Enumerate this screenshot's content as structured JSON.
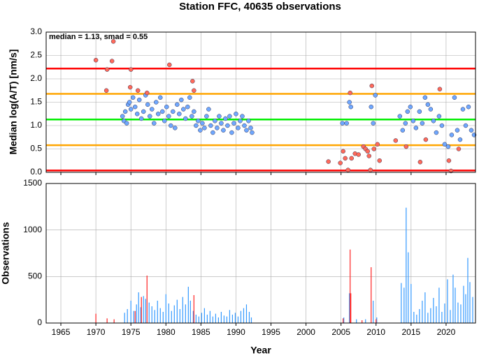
{
  "chart_data": [
    {
      "type": "scatter",
      "title": "Station FFC, 40635 observations",
      "y_label": "Median log(A/T) [nm/s]",
      "annotation": "median = 1.13, smad = 0.55",
      "xlim": [
        1962.9,
        2024.2
      ],
      "ylim": [
        0,
        3
      ],
      "yticks": [
        {
          "value": 0,
          "label": "0.0"
        },
        {
          "value": 0.5,
          "label": "0.5"
        },
        {
          "value": 1,
          "label": "1.0"
        },
        {
          "value": 1.5,
          "label": "1.5"
        },
        {
          "value": 2,
          "label": "2.0"
        },
        {
          "value": 2.5,
          "label": "2.5"
        },
        {
          "value": 3,
          "label": "3.0"
        }
      ],
      "grid": true,
      "hlines": [
        {
          "value": 2.22,
          "color": "#ff0000"
        },
        {
          "value": 1.68,
          "color": "#ffa500"
        },
        {
          "value": 1.13,
          "color": "#00ee00"
        },
        {
          "value": 0.58,
          "color": "#ffa500"
        },
        {
          "value": 0.04,
          "color": "#ff0000"
        }
      ],
      "series": [
        {
          "color": "#6fa8ff",
          "x": [
            1973.8,
            1974,
            1974.2,
            1974.4,
            1974.6,
            1974.8,
            1975,
            1975.3,
            1975.6,
            1975.9,
            1976.2,
            1976.5,
            1976.8,
            1977.1,
            1977.4,
            1977.7,
            1978,
            1978.3,
            1978.6,
            1978.9,
            1979.2,
            1979.5,
            1979.8,
            1980.1,
            1980.4,
            1980.7,
            1981,
            1981.3,
            1981.6,
            1981.9,
            1982.2,
            1982.5,
            1982.8,
            1983.1,
            1983.4,
            1983.7,
            1984,
            1984.3,
            1984.6,
            1984.9,
            1985.2,
            1985.5,
            1985.8,
            1986.1,
            1986.4,
            1986.7,
            1987,
            1987.3,
            1987.6,
            1987.9,
            1988.2,
            1988.5,
            1988.8,
            1989.1,
            1989.4,
            1989.7,
            1990,
            1990.3,
            1990.6,
            1990.9,
            1991.2,
            1991.5,
            1991.8,
            1992.1,
            1992.3,
            2005.2,
            2005.8,
            2006.2,
            2006.4,
            2009.3,
            2009.6,
            2009.9,
            2013.4,
            2013.8,
            2014.2,
            2014.5,
            2014.9,
            2015.3,
            2015.7,
            2016.2,
            2016.6,
            2017,
            2017.4,
            2017.8,
            2018.2,
            2018.6,
            2019,
            2019.4,
            2019.8,
            2020.3,
            2020.8,
            2021.2,
            2021.6,
            2022,
            2022.4,
            2022.8,
            2023.2,
            2023.6,
            2024
          ],
          "y": [
            1.2,
            1.1,
            1.3,
            1.05,
            1.45,
            1.5,
            1.35,
            1.6,
            1.4,
            1.25,
            1.55,
            1.15,
            1.3,
            1.65,
            1.45,
            1.2,
            1.35,
            1.05,
            1.5,
            1.25,
            1.6,
            1.3,
            1.1,
            1.4,
            1.2,
            1.0,
            1.3,
            0.95,
            1.45,
            1.25,
            1.55,
            1.35,
            1.15,
            1.4,
            1.6,
            1.2,
            1.3,
            1.0,
            1.1,
            0.9,
            1.05,
            0.95,
            1.2,
            1.35,
            1.0,
            0.85,
            1.1,
            0.95,
            1.2,
            1.05,
            0.9,
            1.15,
            1.0,
            1.2,
            0.85,
            1.05,
            1.25,
            0.95,
            1.1,
            1.2,
            1.0,
            0.9,
            1.1,
            0.95,
            0.85,
            1.05,
            1.05,
            1.5,
            1.4,
            1.4,
            1.05,
            1.65,
            1.2,
            0.9,
            1.05,
            1.3,
            1.4,
            1.1,
            0.95,
            1.3,
            1.05,
            1.6,
            1.45,
            1.35,
            1.1,
            0.85,
            1.2,
            1.0,
            0.6,
            0.55,
            0.8,
            1.6,
            0.9,
            0.7,
            1.35,
            1.0,
            1.4,
            0.9,
            0.8
          ]
        },
        {
          "color": "#ff6a5a",
          "x": [
            1970,
            1971.5,
            1971.6,
            1972.3,
            1972.5,
            1974.9,
            1975,
            1976,
            1977.3,
            1980.5,
            1983.8,
            1984,
            2003.2,
            2004.9,
            2005.3,
            2005.6,
            2006,
            2006.3,
            2006.5,
            2007,
            2007.5,
            2008.2,
            2008.5,
            2008.8,
            2009,
            2009.2,
            2009.4,
            2009.7,
            2010.2,
            2010.5,
            2012.8,
            2014.3,
            2016.3,
            2017.1,
            2019.1,
            2020.4,
            2020.7,
            2021.8
          ],
          "y": [
            2.4,
            1.75,
            2.2,
            2.38,
            2.8,
            1.82,
            2.2,
            1.75,
            1.7,
            2.3,
            1.95,
            1.75,
            0.23,
            0.2,
            0.45,
            0.3,
            0.05,
            1.7,
            0.3,
            0.4,
            0.38,
            0.55,
            0.5,
            0.45,
            0.35,
            0.05,
            1.85,
            0.5,
            0.6,
            0.25,
            0.68,
            0.55,
            0.22,
            0.7,
            1.78,
            0.25,
            0.03,
            0.5
          ]
        }
      ]
    },
    {
      "type": "bar",
      "y_label": "Observations",
      "x_label": "Year",
      "xlim": [
        1962.9,
        2024.2
      ],
      "ylim": [
        0,
        1500
      ],
      "xticks": [
        1965,
        1970,
        1975,
        1980,
        1985,
        1990,
        1995,
        2000,
        2005,
        2010,
        2015,
        2020
      ],
      "yticks": [
        0,
        500,
        1000,
        1500
      ],
      "grid": true,
      "series": [
        {
          "color": "#3399ff",
          "x": [
            1974.1,
            1974.5,
            1975,
            1975.4,
            1975.8,
            1976.1,
            1976.4,
            1976.8,
            1977.1,
            1977.6,
            1978,
            1978.4,
            1978.8,
            1979.2,
            1979.6,
            1980,
            1980.4,
            1980.8,
            1981.2,
            1981.6,
            1982,
            1982.4,
            1982.8,
            1983.2,
            1983.5,
            1983.9,
            1984.3,
            1984.7,
            1985.1,
            1985.5,
            1985.9,
            1986.3,
            1986.7,
            1987.1,
            1987.5,
            1987.9,
            1988.3,
            1988.7,
            1989.1,
            1989.5,
            1989.9,
            1990.3,
            1990.7,
            1991.1,
            1991.5,
            1991.9,
            1992.2,
            2005.4,
            2006.2,
            2007.2,
            2008.5,
            2009.6,
            2010.1,
            2013.6,
            2014,
            2014.3,
            2014.6,
            2015,
            2015.4,
            2015.8,
            2016.2,
            2016.6,
            2017,
            2017.4,
            2017.8,
            2018.2,
            2018.6,
            2019,
            2019.4,
            2019.8,
            2020.2,
            2020.6,
            2021,
            2021.3,
            2021.7,
            2022.1,
            2022.5,
            2022.8,
            2023.1,
            2023.4,
            2023.8
          ],
          "values": [
            110,
            150,
            240,
            130,
            200,
            330,
            170,
            290,
            260,
            220,
            180,
            140,
            240,
            160,
            120,
            310,
            210,
            130,
            190,
            250,
            150,
            280,
            200,
            390,
            240,
            130,
            90,
            70,
            110,
            160,
            90,
            130,
            70,
            100,
            60,
            120,
            80,
            70,
            140,
            90,
            110,
            70,
            130,
            160,
            200,
            120,
            60,
            60,
            320,
            40,
            40,
            240,
            60,
            430,
            380,
            1240,
            760,
            420,
            120,
            90,
            150,
            240,
            330,
            110,
            160,
            270,
            180,
            380,
            120,
            210,
            470,
            140,
            520,
            380,
            220,
            200,
            400,
            310,
            700,
            440,
            280
          ]
        },
        {
          "color": "#ff2222",
          "x": [
            1970,
            1971.6,
            1972.6,
            1975.6,
            1976.5,
            1977.3,
            1984,
            2005.3,
            2006.3,
            2006.4,
            2008,
            2009.3,
            2010
          ],
          "values": [
            100,
            50,
            40,
            130,
            280,
            510,
            300,
            50,
            790,
            320,
            30,
            600,
            40
          ]
        }
      ]
    }
  ]
}
